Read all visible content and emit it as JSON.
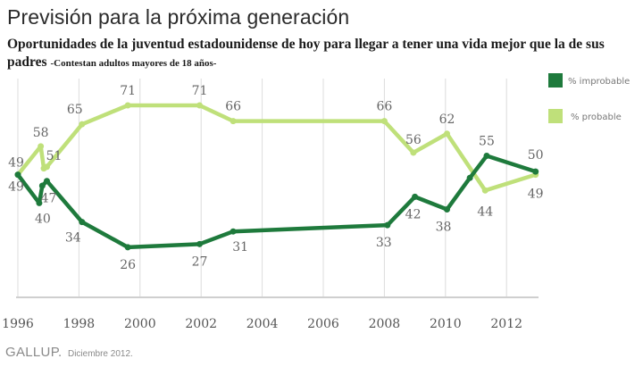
{
  "header": {
    "title": "Previsión para la próxima generación",
    "subtitle": "Oportunidades de la juventud estadounidense de hoy para llegar a tener una vida mejor que la de sus padres",
    "subtitle_note": "-Contestan adultos mayores de 18 años-"
  },
  "footer": {
    "brand": "GALLUP.",
    "date": "Diciembre 2012."
  },
  "chart_data": {
    "type": "line",
    "title": "Previsión para la próxima generación",
    "xlabel": "",
    "ylabel": "",
    "xlim": [
      1996,
      2013
    ],
    "ylim": [
      0,
      100
    ],
    "x_ticks": [
      "1996",
      "1998",
      "2000",
      "2002",
      "2004",
      "2006",
      "2008",
      "2010",
      "2012"
    ],
    "grid": "vertical",
    "legend_position": "right",
    "series": [
      {
        "name": "% improbable",
        "color": "#1e7a3c",
        "points": [
          {
            "x": 1996.0,
            "y": 49,
            "label": "49"
          },
          {
            "x": 1996.7,
            "y": 40,
            "label": "40"
          },
          {
            "x": 1996.8,
            "y": 45.5,
            "label": ""
          },
          {
            "x": 1996.95,
            "y": 47,
            "label": "47"
          },
          {
            "x": 1998.1,
            "y": 34,
            "label": "34"
          },
          {
            "x": 1999.6,
            "y": 26,
            "label": "26"
          },
          {
            "x": 2001.95,
            "y": 27,
            "label": "27"
          },
          {
            "x": 2003.05,
            "y": 31,
            "label": "31"
          },
          {
            "x": 2008.1,
            "y": 33,
            "label": "33"
          },
          {
            "x": 2009.0,
            "y": 42,
            "label": "42"
          },
          {
            "x": 2010.05,
            "y": 38,
            "label": "38"
          },
          {
            "x": 2010.8,
            "y": 48,
            "label": ""
          },
          {
            "x": 2011.35,
            "y": 55,
            "label": "55"
          },
          {
            "x": 2012.95,
            "y": 50,
            "label": "50"
          }
        ]
      },
      {
        "name": "% probable",
        "color": "#bfe07a",
        "points": [
          {
            "x": 1996.0,
            "y": 49,
            "label": "49"
          },
          {
            "x": 1996.75,
            "y": 58,
            "label": "58"
          },
          {
            "x": 1996.85,
            "y": 51,
            "label": ""
          },
          {
            "x": 1996.95,
            "y": 51.5,
            "label": "51"
          },
          {
            "x": 1998.1,
            "y": 65,
            "label": "65"
          },
          {
            "x": 1999.6,
            "y": 71,
            "label": "71"
          },
          {
            "x": 2001.95,
            "y": 71,
            "label": "71"
          },
          {
            "x": 2003.05,
            "y": 66,
            "label": "66"
          },
          {
            "x": 2008.0,
            "y": 66,
            "label": "66"
          },
          {
            "x": 2008.95,
            "y": 56,
            "label": "56"
          },
          {
            "x": 2010.05,
            "y": 62,
            "label": "62"
          },
          {
            "x": 2011.3,
            "y": 44,
            "label": "44"
          },
          {
            "x": 2012.95,
            "y": 49,
            "label": "49"
          }
        ]
      }
    ]
  }
}
